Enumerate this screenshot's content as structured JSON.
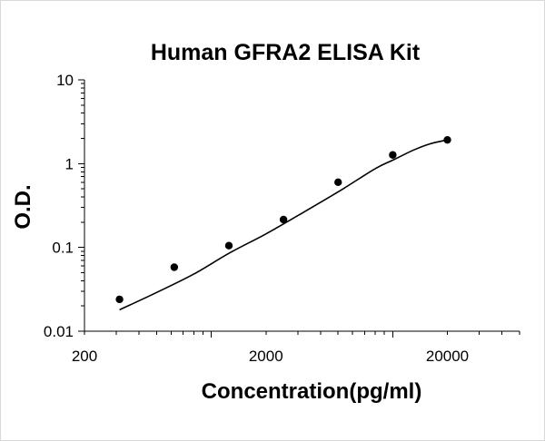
{
  "chart_data": {
    "type": "scatter",
    "title": "Human GFRA2 ELISA Kit",
    "xlabel": "Concentration(pg/ml)",
    "ylabel": "O.D.",
    "x_scale": "log",
    "y_scale": "log",
    "xlim": [
      200,
      50000
    ],
    "ylim": [
      0.01,
      10
    ],
    "x_tick_labels": [
      "200",
      "2000",
      "20000"
    ],
    "x_tick_values": [
      200,
      2000,
      20000
    ],
    "y_tick_labels": [
      "0.01",
      "0.1",
      "1",
      "10"
    ],
    "y_tick_values": [
      0.01,
      0.1,
      1,
      10
    ],
    "grid": false,
    "legend": "none",
    "series": [
      {
        "points": [
          {
            "x": 312,
            "y": 0.024
          },
          {
            "x": 625,
            "y": 0.058
          },
          {
            "x": 1250,
            "y": 0.105
          },
          {
            "x": 2500,
            "y": 0.215
          },
          {
            "x": 5000,
            "y": 0.6
          },
          {
            "x": 10000,
            "y": 1.27
          },
          {
            "x": 20000,
            "y": 1.92
          }
        ],
        "marker_color": "#000000"
      }
    ],
    "fit_curve": {
      "points": [
        {
          "x": 312,
          "y": 0.018
        },
        {
          "x": 500,
          "y": 0.029
        },
        {
          "x": 800,
          "y": 0.048
        },
        {
          "x": 1250,
          "y": 0.085
        },
        {
          "x": 2000,
          "y": 0.145
        },
        {
          "x": 3000,
          "y": 0.24
        },
        {
          "x": 5000,
          "y": 0.46
        },
        {
          "x": 8000,
          "y": 0.87
        },
        {
          "x": 10000,
          "y": 1.1
        },
        {
          "x": 13000,
          "y": 1.45
        },
        {
          "x": 16000,
          "y": 1.72
        },
        {
          "x": 20000,
          "y": 1.92
        }
      ],
      "color": "#000000"
    }
  }
}
